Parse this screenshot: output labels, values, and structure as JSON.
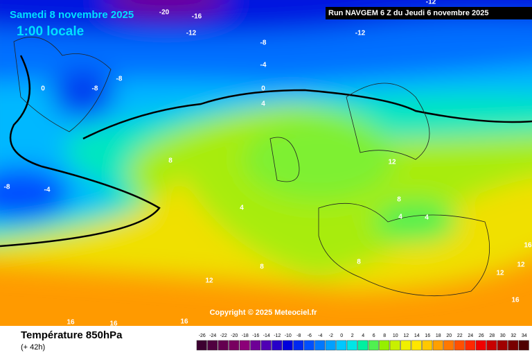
{
  "header": {
    "date": "Samedi 8 novembre 2025",
    "time": "1:00 locale",
    "run": "Run NAVGEM 6 Z du Jeudi 6 novembre 2025"
  },
  "copyright": "Copyright © 2025 Meteociel.fr",
  "contour_labels": [
    -20,
    -16,
    -12,
    -12,
    -12,
    -8,
    -4,
    0,
    4,
    -8,
    -8,
    0,
    -8,
    -4,
    8,
    4,
    8,
    12,
    12,
    8,
    4,
    4,
    8,
    16,
    12,
    12,
    16,
    16,
    16,
    16
  ],
  "footer": {
    "title": "Température 850hPa",
    "lead": "(+ 42h)"
  },
  "scale": {
    "labels": [
      -26,
      -24,
      -22,
      -20,
      -18,
      -16,
      -14,
      -12,
      -10,
      -8,
      -6,
      -4,
      -2,
      0,
      2,
      4,
      6,
      8,
      10,
      12,
      14,
      16,
      18,
      20,
      22,
      24,
      26,
      28,
      30,
      32,
      34
    ],
    "colors": [
      "#3c0030",
      "#500040",
      "#640050",
      "#780060",
      "#8c0078",
      "#6e0096",
      "#5000b4",
      "#2800c8",
      "#0000dc",
      "#0028f0",
      "#0050ff",
      "#0078ff",
      "#00a0ff",
      "#00c8ff",
      "#00e6e6",
      "#00f0a0",
      "#50f050",
      "#96f000",
      "#c8f000",
      "#f0f000",
      "#ffe600",
      "#ffc800",
      "#ffa000",
      "#ff7800",
      "#ff5000",
      "#ff2800",
      "#f00000",
      "#c80000",
      "#a00000",
      "#780000",
      "#500000"
    ]
  }
}
